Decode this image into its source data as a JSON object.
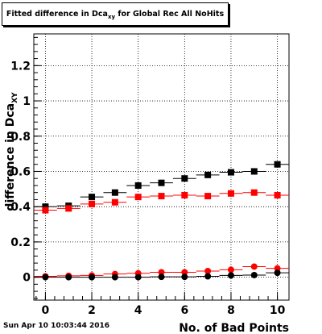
{
  "title": {
    "main": "Fitted difference in Dca",
    "sub": "xy",
    "tail": " for Global Rec All NoHits"
  },
  "timestamp": "Sun Apr 10 10:03:44 2016",
  "chart_data": {
    "type": "scatter",
    "xlabel": "No. of Bad Points",
    "ylabel": "difference in Dca",
    "ylabel_sub": "XY",
    "xlim": [
      -0.5,
      10.5
    ],
    "ylim": [
      -0.13,
      1.38
    ],
    "xticks": [
      "0",
      "2",
      "4",
      "6",
      "8",
      "10"
    ],
    "yticks": [
      "0",
      "0.2",
      "0.4",
      "0.6",
      "0.8",
      "1",
      "1.2"
    ],
    "grid": true,
    "series": [
      {
        "color": "#000000",
        "marker": "square",
        "x": [
          0,
          1,
          2,
          3,
          4,
          5,
          6,
          7,
          8,
          9,
          10
        ],
        "y": [
          0.4,
          0.405,
          0.455,
          0.48,
          0.52,
          0.535,
          0.56,
          0.58,
          0.595,
          0.6,
          0.64
        ]
      },
      {
        "color": "#ff0000",
        "marker": "square",
        "x": [
          0,
          1,
          2,
          3,
          4,
          5,
          6,
          7,
          8,
          9,
          10
        ],
        "y": [
          0.38,
          0.39,
          0.415,
          0.425,
          0.455,
          0.46,
          0.465,
          0.46,
          0.475,
          0.48,
          0.465
        ]
      },
      {
        "color": "#ff0000",
        "marker": "circle",
        "x": [
          0,
          1,
          2,
          3,
          4,
          5,
          6,
          7,
          8,
          9,
          10
        ],
        "y": [
          0.005,
          0.008,
          0.01,
          0.018,
          0.022,
          0.028,
          0.028,
          0.035,
          0.042,
          0.06,
          0.05
        ]
      },
      {
        "color": "#000000",
        "marker": "circle",
        "x": [
          0,
          1,
          2,
          3,
          4,
          5,
          6,
          7,
          8,
          9,
          10
        ],
        "y": [
          0.0,
          0.0,
          0.0,
          0.0,
          0.0,
          0.002,
          0.002,
          0.005,
          0.01,
          0.012,
          0.025
        ]
      }
    ]
  }
}
